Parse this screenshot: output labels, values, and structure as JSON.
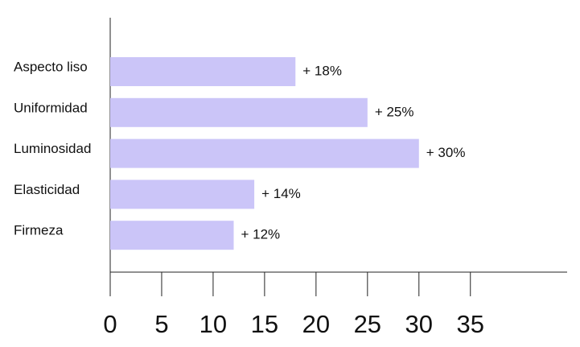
{
  "chart_data": {
    "type": "bar",
    "orientation": "horizontal",
    "categories": [
      "Aspecto liso",
      "Uniformidad",
      "Luminosidad",
      "Elasticidad",
      "Firmeza"
    ],
    "values": [
      18,
      25,
      30,
      14,
      12
    ],
    "value_labels": [
      "+ 18%",
      "+ 25%",
      "+ 30%",
      "+ 14%",
      "+ 12%"
    ],
    "color": "#cbc5f8",
    "xlim": [
      0,
      44.4
    ],
    "xticks": [
      0,
      5,
      10,
      15,
      20,
      25,
      30,
      35
    ],
    "grid": false
  }
}
